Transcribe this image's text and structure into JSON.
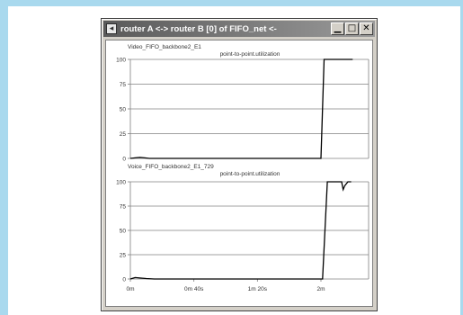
{
  "window": {
    "title": "router A <-> router B [0] of FIFO_net <-",
    "icons": {
      "system": "window-menu-icon",
      "minimize": "minimize-icon",
      "maximize": "maximize-icon",
      "close": "close-icon"
    }
  },
  "colors": {
    "frame": "#a9d9ee",
    "line": "#000000",
    "grid": "#808080"
  },
  "chart_data": [
    {
      "type": "line",
      "header": "Video_FIFO_backbone2_E1",
      "title": "point-to-point.utilization",
      "ylim": [
        0,
        100
      ],
      "yticks": [
        0,
        25,
        50,
        75,
        100
      ],
      "xlim": [
        0,
        150
      ],
      "grid": true,
      "series": [
        {
          "x": [
            0,
            3,
            6,
            9,
            12,
            15,
            120,
            122,
            124,
            140
          ],
          "y": [
            0,
            0.5,
            1,
            0.5,
            0,
            0,
            0,
            100,
            100,
            100
          ]
        }
      ]
    },
    {
      "type": "line",
      "header": "Voice_FIFO_backbone2_E1_729",
      "title": "point-to-point.utilization",
      "ylim": [
        0,
        100
      ],
      "yticks": [
        0,
        25,
        50,
        75,
        100
      ],
      "xlim": [
        0,
        150
      ],
      "xticks": [
        "0m",
        "0m 40s",
        "1m 20s",
        "2m"
      ],
      "xtick_values": [
        0,
        40,
        80,
        120
      ],
      "grid": true,
      "series": [
        {
          "x": [
            0,
            3,
            6,
            10,
            15,
            121,
            124,
            127,
            133,
            134,
            135,
            137,
            139
          ],
          "y": [
            0,
            1.5,
            1,
            0.5,
            0,
            0,
            100,
            100,
            100,
            92,
            96,
            100,
            100
          ]
        }
      ]
    }
  ]
}
